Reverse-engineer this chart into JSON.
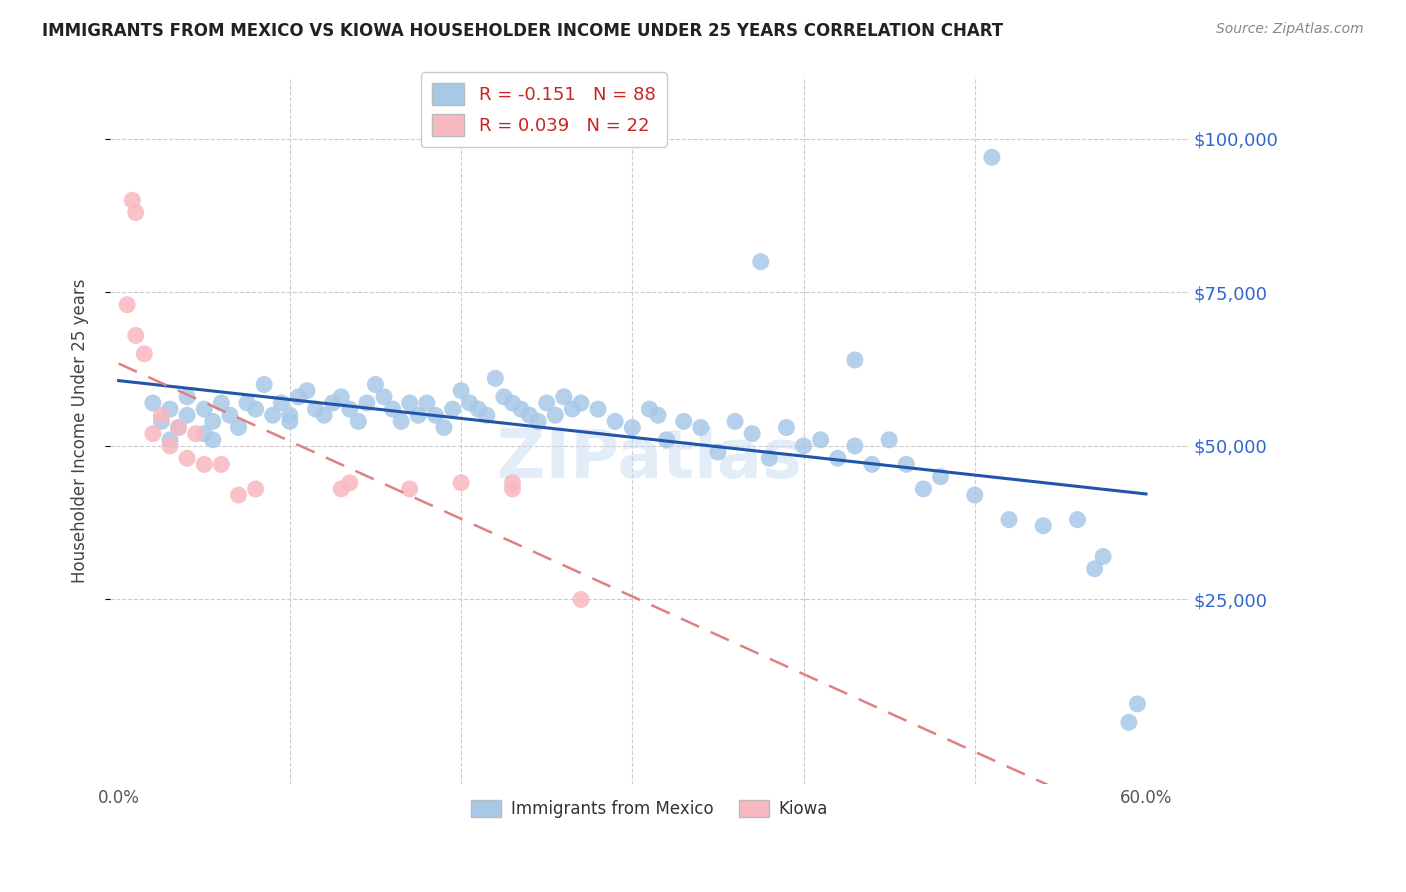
{
  "title": "IMMIGRANTS FROM MEXICO VS KIOWA HOUSEHOLDER INCOME UNDER 25 YEARS CORRELATION CHART",
  "source": "Source: ZipAtlas.com",
  "ylabel": "Householder Income Under 25 years",
  "ytick_labels": [
    "$25,000",
    "$50,000",
    "$75,000",
    "$100,000"
  ],
  "ytick_values": [
    25000,
    50000,
    75000,
    100000
  ],
  "ylim": [
    -5000,
    110000
  ],
  "xlim": [
    -0.005,
    0.625
  ],
  "legend_blue_r": "-0.151",
  "legend_blue_n": "88",
  "legend_pink_r": "0.039",
  "legend_pink_n": "22",
  "legend_blue_label": "Immigrants from Mexico",
  "legend_pink_label": "Kiowa",
  "blue_color": "#a8c8e8",
  "pink_color": "#f8b8c0",
  "blue_line_color": "#2255aa",
  "pink_line_color": "#e08080",
  "watermark": "ZIPatlas",
  "blue_x": [
    0.02,
    0.025,
    0.03,
    0.03,
    0.035,
    0.04,
    0.04,
    0.05,
    0.05,
    0.055,
    0.055,
    0.06,
    0.065,
    0.07,
    0.075,
    0.08,
    0.085,
    0.09,
    0.095,
    0.1,
    0.1,
    0.105,
    0.11,
    0.115,
    0.12,
    0.125,
    0.13,
    0.135,
    0.14,
    0.145,
    0.15,
    0.155,
    0.16,
    0.165,
    0.17,
    0.175,
    0.18,
    0.185,
    0.19,
    0.195,
    0.2,
    0.205,
    0.21,
    0.215,
    0.22,
    0.225,
    0.23,
    0.235,
    0.24,
    0.245,
    0.25,
    0.255,
    0.26,
    0.265,
    0.27,
    0.28,
    0.29,
    0.3,
    0.31,
    0.315,
    0.32,
    0.33,
    0.34,
    0.35,
    0.36,
    0.37,
    0.38,
    0.39,
    0.4,
    0.41,
    0.42,
    0.43,
    0.44,
    0.45,
    0.46,
    0.47,
    0.48,
    0.5,
    0.52,
    0.54,
    0.56,
    0.57,
    0.575,
    0.59,
    0.595,
    0.375,
    0.43,
    0.51
  ],
  "blue_y": [
    57000,
    54000,
    56000,
    51000,
    53000,
    55000,
    58000,
    56000,
    52000,
    54000,
    51000,
    57000,
    55000,
    53000,
    57000,
    56000,
    60000,
    55000,
    57000,
    55000,
    54000,
    58000,
    59000,
    56000,
    55000,
    57000,
    58000,
    56000,
    54000,
    57000,
    60000,
    58000,
    56000,
    54000,
    57000,
    55000,
    57000,
    55000,
    53000,
    56000,
    59000,
    57000,
    56000,
    55000,
    61000,
    58000,
    57000,
    56000,
    55000,
    54000,
    57000,
    55000,
    58000,
    56000,
    57000,
    56000,
    54000,
    53000,
    56000,
    55000,
    51000,
    54000,
    53000,
    49000,
    54000,
    52000,
    48000,
    53000,
    50000,
    51000,
    48000,
    50000,
    47000,
    51000,
    47000,
    43000,
    45000,
    42000,
    38000,
    37000,
    38000,
    30000,
    32000,
    5000,
    8000,
    80000,
    64000,
    97000
  ],
  "pink_x": [
    0.005,
    0.008,
    0.01,
    0.01,
    0.015,
    0.02,
    0.025,
    0.03,
    0.035,
    0.04,
    0.045,
    0.05,
    0.06,
    0.07,
    0.08,
    0.13,
    0.135,
    0.17,
    0.2,
    0.23,
    0.23,
    0.27
  ],
  "pink_y": [
    73000,
    90000,
    88000,
    68000,
    65000,
    52000,
    55000,
    50000,
    53000,
    48000,
    52000,
    47000,
    47000,
    42000,
    43000,
    43000,
    44000,
    43000,
    44000,
    43000,
    44000,
    25000
  ]
}
